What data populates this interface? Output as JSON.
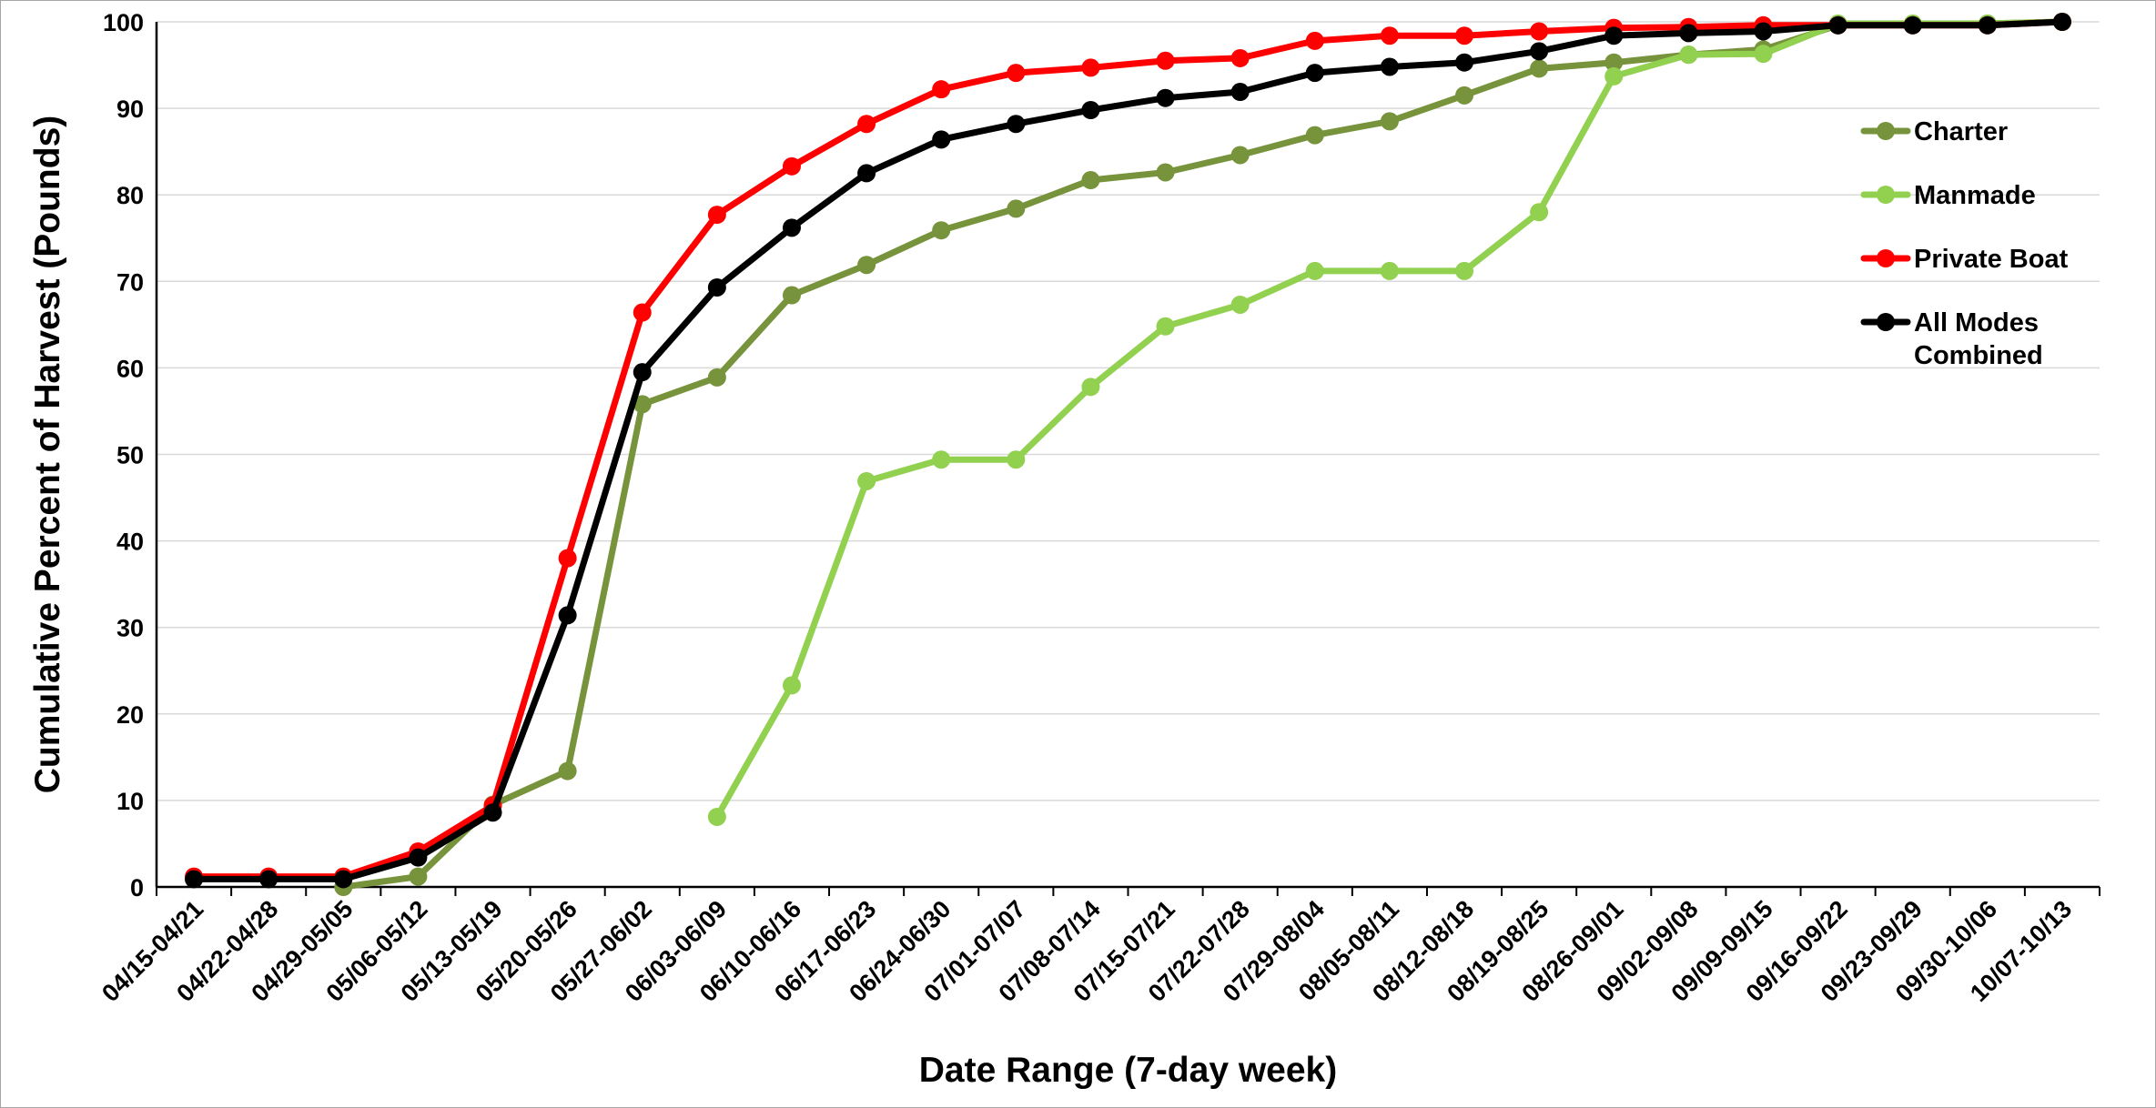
{
  "chart_data": {
    "type": "line",
    "title": "",
    "xlabel": "Date Range (7-day week)",
    "ylabel": "Cumulative Percent of Harvest (Pounds)",
    "ylim": [
      0,
      100
    ],
    "yticks": [
      0,
      10,
      20,
      30,
      40,
      50,
      60,
      70,
      80,
      90,
      100
    ],
    "grid": "horizontal",
    "legend_position": "right",
    "categories": [
      "04/15-04/21",
      "04/22-04/28",
      "04/29-05/05",
      "05/06-05/12",
      "05/13-05/19",
      "05/20-05/26",
      "05/27-06/02",
      "06/03-06/09",
      "06/10-06/16",
      "06/17-06/23",
      "06/24-06/30",
      "07/01-07/07",
      "07/08-07/14",
      "07/15-07/21",
      "07/22-07/28",
      "07/29-08/04",
      "08/05-08/11",
      "08/12-08/18",
      "08/19-08/25",
      "08/26-09/01",
      "09/02-09/08",
      "09/09-09/15",
      "09/16-09/22",
      "09/23-09/29",
      "09/30-10/06",
      "10/07-10/13"
    ],
    "series": [
      {
        "name": "Charter",
        "color": "#77933c",
        "values": [
          null,
          null,
          0.0,
          1.2,
          9.5,
          13.4,
          55.8,
          58.9,
          68.4,
          71.9,
          75.9,
          78.4,
          81.7,
          82.6,
          84.6,
          86.9,
          88.5,
          91.5,
          94.6,
          95.3,
          96.2,
          96.8,
          99.6,
          99.7,
          99.8,
          100.0
        ]
      },
      {
        "name": "Manmade",
        "color": "#92d050",
        "values": [
          null,
          null,
          null,
          null,
          null,
          null,
          null,
          8.1,
          23.3,
          46.9,
          49.4,
          49.4,
          57.8,
          64.8,
          67.3,
          71.2,
          71.2,
          71.2,
          78.0,
          93.7,
          96.2,
          96.3,
          99.8,
          99.8,
          99.8,
          100.0
        ]
      },
      {
        "name": "Private Boat",
        "color": "#ff0000",
        "values": [
          1.2,
          1.2,
          1.2,
          4.1,
          9.4,
          38.0,
          66.4,
          77.7,
          83.3,
          88.2,
          92.2,
          94.1,
          94.7,
          95.5,
          95.8,
          97.8,
          98.4,
          98.4,
          98.9,
          99.3,
          99.4,
          99.6,
          99.6,
          99.6,
          99.6,
          100.0
        ]
      },
      {
        "name": "All Modes Combined",
        "color": "#000000",
        "values": [
          0.9,
          0.9,
          0.9,
          3.4,
          8.6,
          31.4,
          59.5,
          69.3,
          76.2,
          82.5,
          86.4,
          88.2,
          89.8,
          91.2,
          91.9,
          94.1,
          94.8,
          95.3,
          96.6,
          98.4,
          98.7,
          98.9,
          99.6,
          99.6,
          99.6,
          100.0
        ]
      }
    ]
  }
}
